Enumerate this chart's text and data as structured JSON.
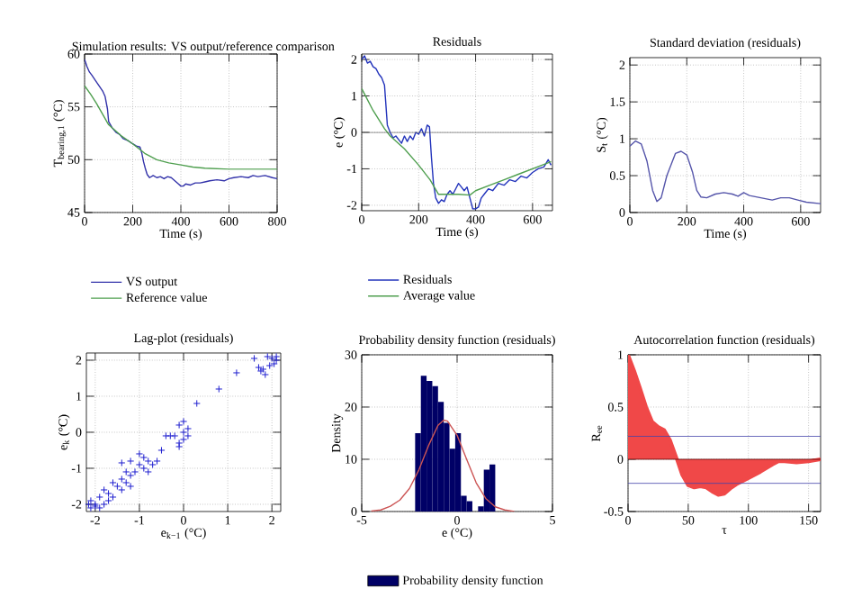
{
  "chart_data": [
    {
      "type": "line",
      "title": "Simulation results: VS output/reference comparison",
      "xlabel": "Time (s)",
      "ylabel": "T$_{bearing,1}$ (°C)",
      "xlim": [
        0,
        800
      ],
      "ylim": [
        45,
        60
      ],
      "xticks": [
        0,
        200,
        400,
        600,
        800
      ],
      "yticks": [
        45,
        50,
        55,
        60
      ],
      "grid": true,
      "legend": "bottom",
      "series": [
        {
          "name": "VS output",
          "color": "#3333aa",
          "x": [
            0,
            10,
            20,
            30,
            45,
            60,
            75,
            85,
            95,
            100,
            115,
            130,
            145,
            160,
            180,
            200,
            215,
            230,
            238,
            245,
            252,
            260,
            270,
            285,
            300,
            315,
            330,
            345,
            360,
            375,
            390,
            400,
            410,
            420,
            440,
            460,
            480,
            500,
            520,
            550,
            580,
            600,
            620,
            650,
            680,
            700,
            720,
            750,
            780,
            800
          ],
          "values": [
            59.5,
            58.8,
            58.3,
            58,
            57.5,
            57,
            56.5,
            56,
            54.8,
            53.6,
            53,
            52.6,
            52.4,
            52,
            51.8,
            51.5,
            51.3,
            51.2,
            50.6,
            49.8,
            49.2,
            48.6,
            48.3,
            48.5,
            48.3,
            48.4,
            48.2,
            48.4,
            48.3,
            48,
            47.7,
            47.5,
            47.5,
            47.7,
            47.6,
            47.8,
            47.8,
            47.9,
            48,
            48.1,
            48,
            48.2,
            48.3,
            48.4,
            48.3,
            48.5,
            48.4,
            48.5,
            48.3,
            48.2
          ]
        },
        {
          "name": "Reference value",
          "color": "#4f9f4f",
          "x": [
            0,
            25,
            50,
            75,
            100,
            150,
            200,
            250,
            300,
            350,
            400,
            450,
            500,
            600,
            700,
            800
          ],
          "values": [
            57,
            56.2,
            55.3,
            54.3,
            53.3,
            52.3,
            51.5,
            50.6,
            50,
            49.7,
            49.5,
            49.3,
            49.2,
            49.1,
            49.1,
            49.1
          ]
        }
      ]
    },
    {
      "type": "line",
      "title": "Residuals",
      "xlabel": "Time (s)",
      "ylabel": "e (°C)",
      "xlim": [
        0,
        670
      ],
      "ylim": [
        -2.15,
        2.15
      ],
      "xticks": [
        0,
        200,
        400,
        600
      ],
      "yticks": [
        -2,
        -1,
        0,
        1,
        2
      ],
      "grid": true,
      "legend": "bottom",
      "ref_lines": [
        {
          "axis": "y",
          "value": 0,
          "color": "#555555"
        }
      ],
      "series": [
        {
          "name": "Residuals",
          "color": "#2233bb",
          "x": [
            0,
            10,
            20,
            30,
            40,
            50,
            60,
            70,
            80,
            90,
            100,
            110,
            120,
            130,
            140,
            150,
            160,
            170,
            180,
            190,
            200,
            210,
            220,
            230,
            238,
            245,
            252,
            260,
            270,
            280,
            290,
            300,
            310,
            320,
            330,
            340,
            350,
            360,
            370,
            380,
            390,
            400,
            410,
            420,
            430,
            445,
            460,
            480,
            500,
            520,
            540,
            560,
            580,
            600,
            620,
            640,
            655,
            665
          ],
          "values": [
            2,
            2.1,
            1.9,
            1.95,
            1.8,
            1.75,
            1.6,
            1.5,
            1.3,
            0.2,
            0,
            -0.15,
            -0.1,
            -0.2,
            -0.3,
            -0.1,
            -0.25,
            -0.1,
            -0.2,
            0,
            -0.05,
            0.1,
            -0.1,
            0.2,
            0.15,
            -0.7,
            -1.4,
            -1.8,
            -1.95,
            -1.85,
            -1.9,
            -1.7,
            -1.6,
            -1.7,
            -1.55,
            -1.4,
            -1.5,
            -1.6,
            -1.5,
            -1.8,
            -2.1,
            -2.1,
            -2.05,
            -1.8,
            -1.7,
            -1.55,
            -1.6,
            -1.4,
            -1.45,
            -1.3,
            -1.35,
            -1.2,
            -1.25,
            -1.1,
            -1,
            -0.95,
            -0.75,
            -0.9
          ]
        },
        {
          "name": "Average value",
          "color": "#4f9f4f",
          "x": [
            0,
            40,
            80,
            100,
            150,
            200,
            240,
            270,
            300,
            340,
            380,
            400,
            450,
            500,
            550,
            600,
            650,
            665
          ],
          "values": [
            1.2,
            0.6,
            0.1,
            -0.1,
            -0.45,
            -0.9,
            -1.3,
            -1.7,
            -1.7,
            -1.7,
            -1.72,
            -1.6,
            -1.45,
            -1.3,
            -1.15,
            -1,
            -0.85,
            -0.8
          ]
        }
      ]
    },
    {
      "type": "line",
      "title": "Standard deviation (residuals)",
      "xlabel": "Time (s)",
      "ylabel": "S$_{t}$ (°C)",
      "xlim": [
        0,
        670
      ],
      "ylim": [
        0,
        2.1
      ],
      "xticks": [
        0,
        200,
        400,
        600
      ],
      "yticks": [
        0,
        0.5,
        1,
        1.5,
        2
      ],
      "grid": true,
      "series": [
        {
          "color": "#5555aa",
          "x": [
            0,
            20,
            40,
            60,
            80,
            95,
            110,
            130,
            160,
            180,
            200,
            220,
            235,
            250,
            270,
            300,
            330,
            360,
            380,
            400,
            420,
            460,
            500,
            530,
            560,
            590,
            620,
            670
          ],
          "values": [
            0.9,
            0.97,
            0.93,
            0.7,
            0.3,
            0.15,
            0.2,
            0.5,
            0.8,
            0.83,
            0.78,
            0.55,
            0.3,
            0.21,
            0.2,
            0.25,
            0.27,
            0.25,
            0.22,
            0.27,
            0.23,
            0.2,
            0.17,
            0.2,
            0.2,
            0.17,
            0.14,
            0.12
          ]
        }
      ]
    },
    {
      "type": "scatter",
      "title": "Lag-plot (residuals)",
      "xlabel": "e$_{k−1}$ (°C)",
      "ylabel": "e$_{k}$ (°C)",
      "xlim": [
        -2.2,
        2.2
      ],
      "ylim": [
        -2.2,
        2.2
      ],
      "xticks": [
        -2,
        -1,
        0,
        1,
        2
      ],
      "yticks": [
        -2,
        -1,
        0,
        1,
        2
      ],
      "grid": true,
      "marker": "cross",
      "series": [
        {
          "color": "#1f1fd0",
          "x": [
            2,
            2.1,
            1.9,
            2.05,
            1.8,
            1.75,
            1.95,
            1.85,
            2.1,
            1.7,
            1.6,
            1.2,
            0.8,
            0.3,
            -0.1,
            0,
            -0.2,
            0,
            -0.1,
            -0.3,
            0.1,
            -0.4,
            0,
            -0.1,
            0.1,
            -1,
            -0.9,
            -0.8,
            -1.1,
            -0.7,
            -0.9,
            -1,
            -0.6,
            -0.5,
            -0.8,
            -1.2,
            -1.4,
            -1.3,
            -1.2,
            -1.5,
            -1.6,
            -1.4,
            -1.3,
            -1.7,
            -1.8,
            -1.6,
            -1.9,
            -1.2,
            -1.4,
            -2,
            -2.1,
            -1.9,
            -2.1,
            -2,
            -1.8,
            -2.15,
            -1.7
          ],
          "values": [
            2.05,
            2,
            2.1,
            1.9,
            1.75,
            1.7,
            1.85,
            1.6,
            2.1,
            1.8,
            2.05,
            1.65,
            1.2,
            0.8,
            0.2,
            0.3,
            -0.1,
            -0.2,
            -0.4,
            -0.1,
            -0.1,
            -0.1,
            0,
            -0.3,
            0.1,
            -0.9,
            -1,
            -0.8,
            -1.1,
            -0.9,
            -0.7,
            -0.6,
            -0.8,
            -0.5,
            -1.1,
            -0.8,
            -1.3,
            -1.4,
            -1.2,
            -1.5,
            -1.4,
            -1.6,
            -1.1,
            -1.7,
            -1.6,
            -1.8,
            -1.8,
            -1.5,
            -0.85,
            -2,
            -1.9,
            -2.1,
            -2.1,
            -2.05,
            -2,
            -2,
            -1.9
          ]
        }
      ]
    },
    {
      "type": "histogram",
      "title": "Probability density function (residuals)",
      "xlabel": "e (°C)",
      "ylabel": "Density",
      "xlim": [
        -5,
        5
      ],
      "ylim": [
        0,
        30
      ],
      "xticks": [
        -5,
        0,
        5
      ],
      "yticks": [
        0,
        10,
        20,
        30
      ],
      "grid": true,
      "legend": "bottom",
      "bins": [
        -2.2,
        -1.9,
        -1.6,
        -1.3,
        -1,
        -0.7,
        -0.4,
        -0.1,
        0.2,
        0.5,
        0.8,
        1.1,
        1.4,
        1.7,
        2
      ],
      "series": [
        {
          "name": "Probability density function",
          "type": "histogram",
          "color": "#000066",
          "values": [
            15,
            26,
            25,
            24,
            21,
            17,
            12,
            15,
            3,
            2,
            0,
            1,
            8,
            9
          ]
        },
        {
          "type": "line",
          "color": "#cc5555",
          "x": [
            -4.5,
            -4,
            -3.5,
            -3,
            -2.5,
            -2,
            -1.5,
            -1,
            -0.7,
            -0.5,
            0,
            0.5,
            1,
            1.5,
            2,
            2.5,
            3
          ],
          "values": [
            0.1,
            0.3,
            1,
            2.2,
            4.4,
            8,
            12.6,
            16.5,
            17.5,
            17.3,
            14.6,
            10,
            5.5,
            2.5,
            0.9,
            0.3,
            0
          ]
        }
      ]
    },
    {
      "type": "area",
      "title": "Autocorrelation function (residuals)",
      "xlabel": "τ",
      "ylabel": "R$_{ee}$",
      "xlim": [
        0,
        160
      ],
      "ylim": [
        -0.5,
        1
      ],
      "xticks": [
        0,
        50,
        100,
        150
      ],
      "yticks": [
        -0.5,
        0,
        0.5,
        1
      ],
      "grid": true,
      "ref_lines": [
        {
          "axis": "y",
          "value": 0.22,
          "color": "#4444aa"
        },
        {
          "axis": "y",
          "value": -0.23,
          "color": "#4444aa"
        },
        {
          "axis": "y",
          "value": 0,
          "color": "#550000"
        }
      ],
      "series": [
        {
          "color": "#f04848",
          "x": [
            0,
            5,
            10,
            15,
            20,
            25,
            30,
            35,
            40,
            45,
            50,
            55,
            60,
            65,
            70,
            75,
            80,
            85,
            90,
            100,
            110,
            120,
            125,
            130,
            140,
            150,
            160
          ],
          "values": [
            1,
            0.85,
            0.68,
            0.5,
            0.36,
            0.31,
            0.28,
            0.18,
            0.02,
            -0.15,
            -0.25,
            -0.27,
            -0.26,
            -0.27,
            -0.31,
            -0.34,
            -0.33,
            -0.28,
            -0.24,
            -0.18,
            -0.12,
            -0.05,
            -0.02,
            -0.02,
            -0.03,
            -0.02,
            0
          ]
        }
      ]
    }
  ]
}
